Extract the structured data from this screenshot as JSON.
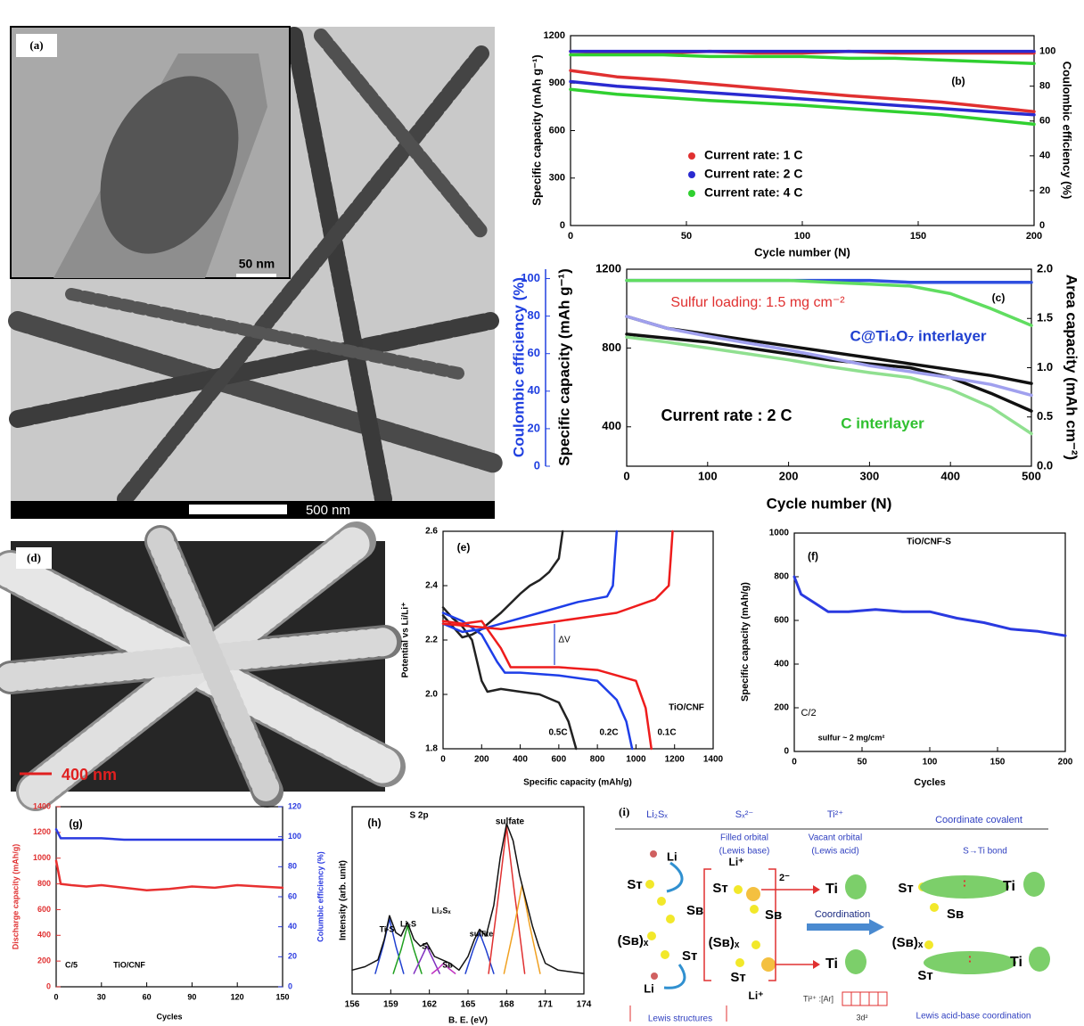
{
  "chart_data": [
    {
      "type": "line",
      "label": "(b)",
      "xlabel": "Cycle number (N)",
      "ylabel": "Specific capacity (mAh g⁻¹)",
      "y2label": "Coulombic efficiency (%)",
      "x": [
        0,
        20,
        40,
        60,
        80,
        100,
        120,
        140,
        160,
        180,
        200
      ],
      "xlim": [
        0,
        200
      ],
      "xticks": [
        0,
        50,
        100,
        150,
        200
      ],
      "ylim": [
        0,
        1200
      ],
      "yticks": [
        0,
        300,
        600,
        900,
        1200
      ],
      "y2lim": [
        0,
        109
      ],
      "y2ticks": [
        0,
        20,
        40,
        60,
        80,
        100
      ],
      "legend": "lower center",
      "series": [
        {
          "name": "Current rate: 1 C",
          "color": "#e03030",
          "values": [
            980,
            940,
            920,
            895,
            870,
            845,
            820,
            800,
            780,
            750,
            720
          ]
        },
        {
          "name": "Current rate: 2 C",
          "color": "#2a2ad0",
          "values": [
            910,
            880,
            860,
            840,
            820,
            800,
            780,
            760,
            740,
            720,
            700
          ]
        },
        {
          "name": "Current rate: 4 C",
          "color": "#30d030",
          "values": [
            860,
            830,
            810,
            790,
            775,
            760,
            740,
            720,
            700,
            670,
            640
          ]
        },
        {
          "color": "#e03030",
          "axis": "y2",
          "values": [
            100,
            99,
            99,
            100,
            99,
            99,
            100,
            99,
            99,
            99,
            99
          ]
        },
        {
          "color": "#2a2ad0",
          "axis": "y2",
          "values": [
            100,
            100,
            100,
            100,
            100,
            100,
            100,
            100,
            100,
            100,
            100
          ]
        },
        {
          "color": "#30d030",
          "axis": "y2",
          "values": [
            98,
            98,
            98,
            97,
            97,
            97,
            96,
            96,
            95,
            94,
            93
          ]
        }
      ]
    },
    {
      "type": "line",
      "label": "(c)",
      "xlabel": "Cycle number (N)",
      "ylabel": "Specific capacity (mAh g⁻¹)",
      "y2label": "Area capacity (mAh cm⁻²)",
      "y3label": "Coulombic efficiency (%)",
      "x": [
        0,
        50,
        100,
        150,
        200,
        250,
        300,
        350,
        400,
        450,
        500
      ],
      "xlim": [
        0,
        500
      ],
      "xticks": [
        0,
        100,
        200,
        300,
        400,
        500
      ],
      "ylim": [
        200,
        1200
      ],
      "yticks": [
        400,
        800,
        1200
      ],
      "y2lim": [
        0,
        2
      ],
      "y2ticks": [
        {
          "value": 0,
          "label": "0.0"
        },
        0.5,
        {
          "value": 1,
          "label": "1.0"
        },
        1.5,
        {
          "value": 2,
          "label": "2.0"
        }
      ],
      "y3lim": [
        0,
        105
      ],
      "y3ticks": [
        0,
        20,
        40,
        60,
        80,
        100
      ],
      "annotations": [
        "Sulfur loading: 1.5 mg cm⁻²",
        "C@Ti₄O₇ interlayer",
        "Current rate : 2 C",
        "C interlayer"
      ],
      "series": [
        {
          "color": "#111111",
          "values": [
            960,
            900,
            870,
            840,
            810,
            780,
            750,
            720,
            690,
            660,
            620
          ]
        },
        {
          "color": "#111111",
          "values": [
            870,
            850,
            830,
            800,
            770,
            740,
            720,
            700,
            650,
            570,
            480
          ]
        },
        {
          "color": "#a0a0ee",
          "axis": "y2",
          "values": [
            1.52,
            1.4,
            1.32,
            1.25,
            1.18,
            1.1,
            1.02,
            0.96,
            0.9,
            0.83,
            0.72
          ]
        },
        {
          "color": "#90e090",
          "axis": "y2",
          "values": [
            1.31,
            1.26,
            1.2,
            1.14,
            1.08,
            1.01,
            0.95,
            0.9,
            0.78,
            0.6,
            0.33
          ]
        },
        {
          "color": "#3050e0",
          "axis": "y3",
          "values": [
            99,
            99,
            99,
            99,
            99,
            99,
            99,
            98,
            98,
            98,
            98
          ]
        },
        {
          "color": "#60dd60",
          "axis": "y3",
          "values": [
            99,
            99,
            99,
            99,
            99,
            98,
            97,
            96,
            92,
            84,
            75
          ]
        }
      ]
    },
    {
      "type": "line",
      "label": "(e)",
      "xlabel": "Specific capacity (mAh/g)",
      "ylabel": "Potential vs Li/Li⁺",
      "xlim": [
        0,
        1400
      ],
      "xticks": [
        0,
        200,
        400,
        600,
        800,
        1000,
        1200,
        1400
      ],
      "ylim": [
        1.8,
        2.6
      ],
      "yticks": [
        1.8,
        {
          "value": 2,
          "label": "2.0"
        },
        2.2,
        2.4,
        2.6
      ],
      "annotations": [
        "ΔV",
        "TiO/CNF",
        "0.5C",
        "0.2C",
        "0.1C"
      ],
      "series": [
        {
          "color": "#222222",
          "x": [
            0,
            50,
            100,
            150,
            200,
            230,
            300,
            400,
            500,
            600,
            650,
            690
          ],
          "values": [
            2.32,
            2.28,
            2.25,
            2.2,
            2.05,
            2.01,
            2.02,
            2.01,
            2.0,
            1.97,
            1.9,
            1.8
          ]
        },
        {
          "color": "#222222",
          "x": [
            0,
            50,
            100,
            150,
            200,
            300,
            400,
            450,
            500,
            550,
            600,
            620
          ],
          "values": [
            2.29,
            2.25,
            2.21,
            2.22,
            2.24,
            2.3,
            2.37,
            2.4,
            2.42,
            2.45,
            2.5,
            2.6
          ]
        },
        {
          "color": "#1e3ee8",
          "x": [
            0,
            100,
            200,
            280,
            320,
            400,
            600,
            800,
            900,
            950,
            980
          ],
          "values": [
            2.3,
            2.27,
            2.22,
            2.12,
            2.08,
            2.08,
            2.07,
            2.05,
            1.98,
            1.9,
            1.8
          ]
        },
        {
          "color": "#1e3ee8",
          "x": [
            0,
            100,
            200,
            300,
            500,
            700,
            850,
            880,
            890,
            900
          ],
          "values": [
            2.26,
            2.23,
            2.24,
            2.26,
            2.3,
            2.34,
            2.36,
            2.4,
            2.5,
            2.6
          ]
        },
        {
          "color": "#ee1c1c",
          "x": [
            0,
            100,
            200,
            300,
            350,
            400,
            600,
            800,
            1000,
            1050,
            1080
          ],
          "values": [
            2.27,
            2.26,
            2.27,
            2.17,
            2.1,
            2.1,
            2.1,
            2.09,
            2.05,
            1.95,
            1.8
          ]
        },
        {
          "color": "#ee1c1c",
          "x": [
            0,
            300,
            600,
            900,
            1100,
            1170,
            1180,
            1190
          ],
          "values": [
            2.26,
            2.24,
            2.27,
            2.3,
            2.35,
            2.4,
            2.5,
            2.6
          ]
        }
      ]
    },
    {
      "type": "line",
      "title": "TiO/CNF-S",
      "label": "(f)",
      "xlabel": "Cycles",
      "ylabel": "Specific capacity (mAh/g)",
      "x": [
        0,
        5,
        15,
        25,
        40,
        60,
        80,
        100,
        120,
        140,
        160,
        180,
        200
      ],
      "xlim": [
        0,
        200
      ],
      "xticks": [
        0,
        50,
        100,
        150,
        200
      ],
      "ylim": [
        0,
        1000
      ],
      "yticks": [
        0,
        200,
        400,
        600,
        800,
        1000
      ],
      "annotations": [
        "C/2",
        "sulfur ~ 2 mg/cm²"
      ],
      "series": [
        {
          "color": "#2a3ae0",
          "values": [
            800,
            720,
            680,
            640,
            640,
            650,
            640,
            640,
            610,
            590,
            560,
            550,
            530
          ]
        }
      ]
    },
    {
      "type": "line",
      "label": "(g)",
      "xlabel": "Cycles",
      "ylabel": "Discharge capacity (mAh/g)",
      "y2label": "Columbic efficiency (%)",
      "x": [
        0,
        3,
        10,
        20,
        30,
        45,
        60,
        75,
        90,
        105,
        120,
        135,
        150
      ],
      "xlim": [
        0,
        150
      ],
      "xticks": [
        0,
        30,
        60,
        90,
        120,
        150
      ],
      "ylim": [
        0,
        1400
      ],
      "yticks": [
        0,
        200,
        400,
        600,
        800,
        1000,
        1200,
        1400
      ],
      "y2lim": [
        0,
        120
      ],
      "y2ticks": [
        0,
        20,
        40,
        60,
        80,
        100,
        120
      ],
      "annotations": [
        "C/5",
        "TiO/CNF"
      ],
      "series": [
        {
          "color": "#e83030",
          "values": [
            980,
            800,
            790,
            780,
            790,
            770,
            750,
            760,
            780,
            770,
            790,
            780,
            770
          ]
        },
        {
          "color": "#2a3ae0",
          "axis": "y2",
          "values": [
            105,
            99,
            99,
            99,
            99,
            98,
            98,
            98,
            98,
            98,
            98,
            98,
            98
          ]
        }
      ]
    },
    {
      "type": "line",
      "title": "S 2p",
      "label": "(h)",
      "xlabel": "B. E. (eV)",
      "ylabel": "Intensity (arb. unit)",
      "xlim": [
        156,
        174
      ],
      "xticks": [
        156,
        159,
        162,
        165,
        168,
        171,
        174
      ],
      "ylim": [
        0,
        110
      ],
      "annotations": [
        "sulfate",
        "Ti-S",
        "Li₂S",
        "Li₂Sₓ",
        "S₁",
        "Sʙ",
        "sulfite"
      ],
      "series": [
        {
          "color": "#2040d0",
          "x": [
            157.8,
            158.4,
            158.9,
            159.4,
            160
          ],
          "values": [
            12,
            28,
            44,
            28,
            12
          ]
        },
        {
          "color": "#20a020",
          "x": [
            159.2,
            159.8,
            160.3,
            160.8,
            161.4
          ],
          "values": [
            12,
            26,
            40,
            26,
            12
          ]
        },
        {
          "color": "#8030c0",
          "x": [
            160.8,
            161.3,
            161.8,
            162.3,
            162.8
          ],
          "values": [
            12,
            20,
            28,
            20,
            12
          ]
        },
        {
          "color": "#c030c0",
          "x": [
            162.2,
            162.7,
            163.1,
            163.5,
            164
          ],
          "values": [
            12,
            15,
            18,
            15,
            12
          ]
        },
        {
          "color": "#2040d0",
          "x": [
            164.8,
            165.4,
            165.9,
            166.4,
            167
          ],
          "values": [
            12,
            26,
            36,
            26,
            12
          ]
        },
        {
          "color": "#e03030",
          "x": [
            166.6,
            167.4,
            168,
            168.6,
            169.4
          ],
          "values": [
            12,
            60,
            98,
            60,
            12
          ]
        },
        {
          "color": "#f0a020",
          "x": [
            167.8,
            168.6,
            169.2,
            169.8,
            170.6
          ],
          "values": [
            12,
            40,
            64,
            40,
            12
          ]
        },
        {
          "color": "#111111",
          "x": [
            156,
            157,
            158,
            158.5,
            158.9,
            159.4,
            159.8,
            160.3,
            160.8,
            161.3,
            161.8,
            162.4,
            163,
            163.6,
            164.3,
            165,
            165.5,
            165.9,
            166.4,
            167,
            167.5,
            168,
            168.5,
            169,
            169.5,
            170,
            170.5,
            171,
            172,
            173,
            174
          ],
          "values": [
            14,
            16,
            20,
            32,
            46,
            36,
            34,
            42,
            32,
            28,
            30,
            22,
            20,
            18,
            14,
            22,
            32,
            38,
            34,
            52,
            80,
            100,
            90,
            70,
            55,
            40,
            28,
            18,
            14,
            13,
            12
          ]
        }
      ]
    }
  ],
  "images": {
    "a": {
      "label": "(a)",
      "inset_scale": "50 nm",
      "scale": "500 nm"
    },
    "d": {
      "label": "(d)",
      "scale": "400 nm"
    }
  },
  "diagram": {
    "label": "(i)",
    "columns": [
      "Li₂Sₓ",
      "Sₓ²⁻",
      "Ti²⁺",
      "Coordinate covalent"
    ],
    "notes": [
      "Filled orbital",
      "(Lewis base)",
      "Vacant orbital",
      "(Lewis acid)",
      "S→Ti bond"
    ],
    "left_atoms": [
      "Li",
      "Sᴛ",
      "Sʙ",
      "(Sʙ)ₓ",
      "Sᴛ",
      "Li"
    ],
    "middle_atoms": [
      "Li⁺",
      "2⁻",
      "Sᴛ",
      "Sʙ",
      "(Sʙ)ₓ",
      "Sᴛ",
      "Li⁺",
      "Ti",
      "Ti"
    ],
    "right_atoms": [
      "Sᴛ",
      "Ti",
      "Sʙ",
      "(Sʙ)ₓ",
      "Sᴛ",
      "Ti"
    ],
    "coordination": "Coordination",
    "config": "Ti²⁺ :[Ar]",
    "orbital": "3d²",
    "footers": [
      "Lewis structures",
      "Lewis acid-base coordination"
    ]
  }
}
